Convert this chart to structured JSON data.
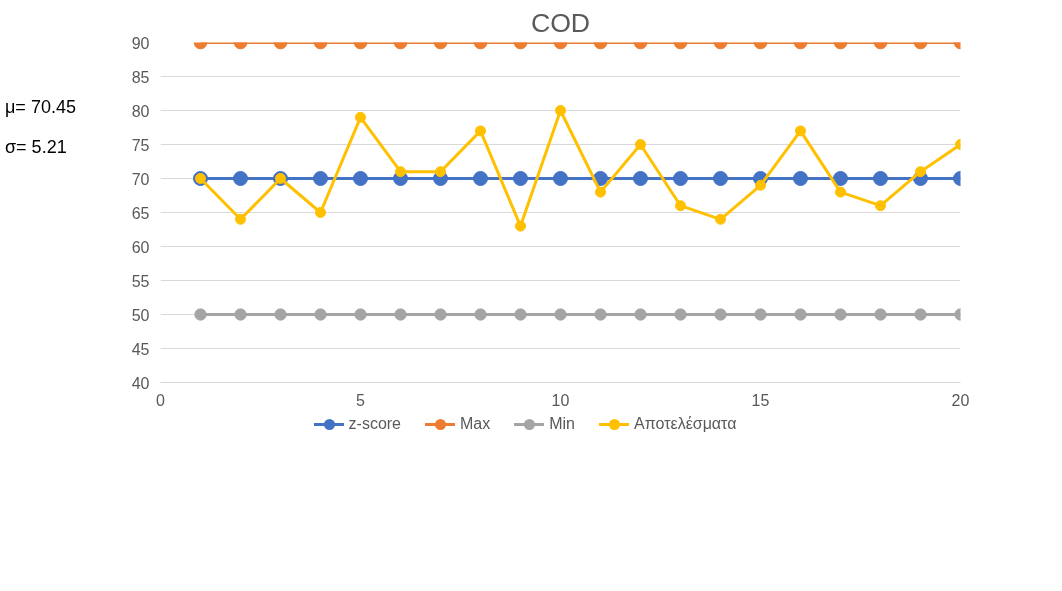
{
  "chart_data": {
    "type": "line",
    "title": "COD",
    "annotations": [
      "μ= 70.45",
      "σ= 5.21"
    ],
    "x": [
      1,
      2,
      3,
      4,
      5,
      6,
      7,
      8,
      9,
      10,
      11,
      12,
      13,
      14,
      15,
      16,
      17,
      18,
      19,
      20
    ],
    "series": [
      {
        "name": "z-score",
        "color": "#4472c4",
        "values": [
          70,
          70,
          70,
          70,
          70,
          70,
          70,
          70,
          70,
          70,
          70,
          70,
          70,
          70,
          70,
          70,
          70,
          70,
          70,
          70
        ]
      },
      {
        "name": "Max",
        "color": "#ed7d31",
        "values": [
          90,
          90,
          90,
          90,
          90,
          90,
          90,
          90,
          90,
          90,
          90,
          90,
          90,
          90,
          90,
          90,
          90,
          90,
          90,
          90
        ]
      },
      {
        "name": "Min",
        "color": "#a5a5a5",
        "values": [
          50,
          50,
          50,
          50,
          50,
          50,
          50,
          50,
          50,
          50,
          50,
          50,
          50,
          50,
          50,
          50,
          50,
          50,
          50,
          50
        ]
      },
      {
        "name": "Αποτελέσματα",
        "color": "#ffc000",
        "values": [
          70,
          64,
          70,
          65,
          79,
          71,
          71,
          77,
          63,
          80,
          68,
          75,
          66,
          64,
          69,
          77,
          68,
          66,
          71,
          75
        ]
      }
    ],
    "xlim": [
      0,
      20
    ],
    "xticks": [
      0,
      5,
      10,
      15,
      20
    ],
    "ylim": [
      40,
      90
    ],
    "yticks": [
      40,
      45,
      50,
      55,
      60,
      65,
      70,
      75,
      80,
      85,
      90
    ],
    "grid": "y",
    "legend": "bottom",
    "marker": "circle",
    "line_style": "solid"
  }
}
